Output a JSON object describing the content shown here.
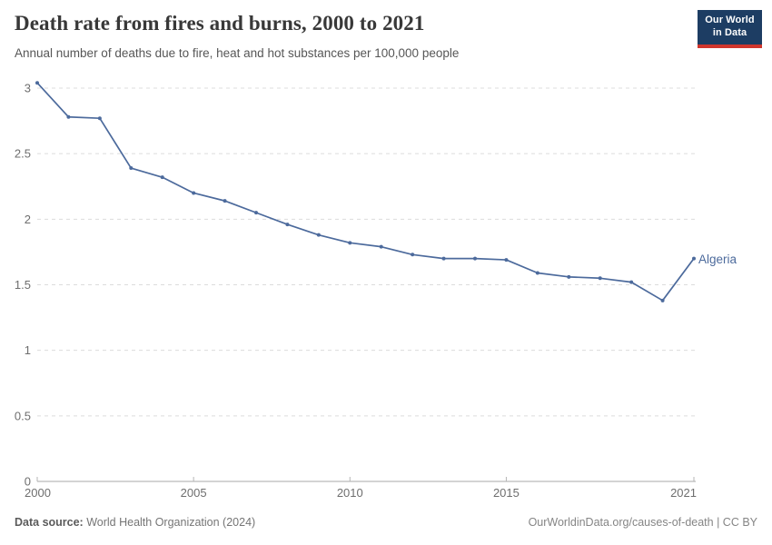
{
  "header": {
    "title": "Death rate from fires and burns, 2000 to 2021",
    "subtitle": "Annual number of deaths due to fire, heat and hot substances per 100,000 people",
    "logo": {
      "line1": "Our World",
      "line2": "in Data"
    }
  },
  "chart_data": {
    "type": "line",
    "title": "Death rate from fires and burns, 2000 to 2021",
    "xlabel": "",
    "ylabel": "Annual number of deaths due to fire, heat and hot substances per 100,000 people",
    "x": [
      2000,
      2001,
      2002,
      2003,
      2004,
      2005,
      2006,
      2007,
      2008,
      2009,
      2010,
      2011,
      2012,
      2013,
      2014,
      2015,
      2016,
      2017,
      2018,
      2019,
      2020,
      2021
    ],
    "series": [
      {
        "name": "Algeria",
        "color": "#4c6a9c",
        "values": [
          3.04,
          2.78,
          2.77,
          2.39,
          2.32,
          2.2,
          2.14,
          2.05,
          1.96,
          1.88,
          1.82,
          1.79,
          1.73,
          1.7,
          1.7,
          1.69,
          1.59,
          1.56,
          1.55,
          1.52,
          1.38,
          1.7
        ]
      }
    ],
    "ylim": [
      0,
      3
    ],
    "yticks": [
      0,
      0.5,
      1,
      1.5,
      2,
      2.5,
      3
    ],
    "ytick_labels": [
      "0",
      "0.5",
      "1",
      "1.5",
      "2",
      "2.5",
      "3"
    ],
    "xticks": [
      2000,
      2005,
      2010,
      2015,
      2021
    ],
    "grid": "horizontal-dashed",
    "legend_position": "line-end-label"
  },
  "footer": {
    "source_label": "Data source:",
    "source_value": " World Health Organization (2024)",
    "attribution": "OurWorldinData.org/causes-of-death | CC BY"
  },
  "colors": {
    "line": "#4c6a9c",
    "grid": "#dcdcdc",
    "axis": "#a9a9a9",
    "tick": "#b5b5b5",
    "tick_text": "#6e6e6e",
    "logo_bg": "#1d3d63",
    "logo_accent": "#d0352c"
  }
}
